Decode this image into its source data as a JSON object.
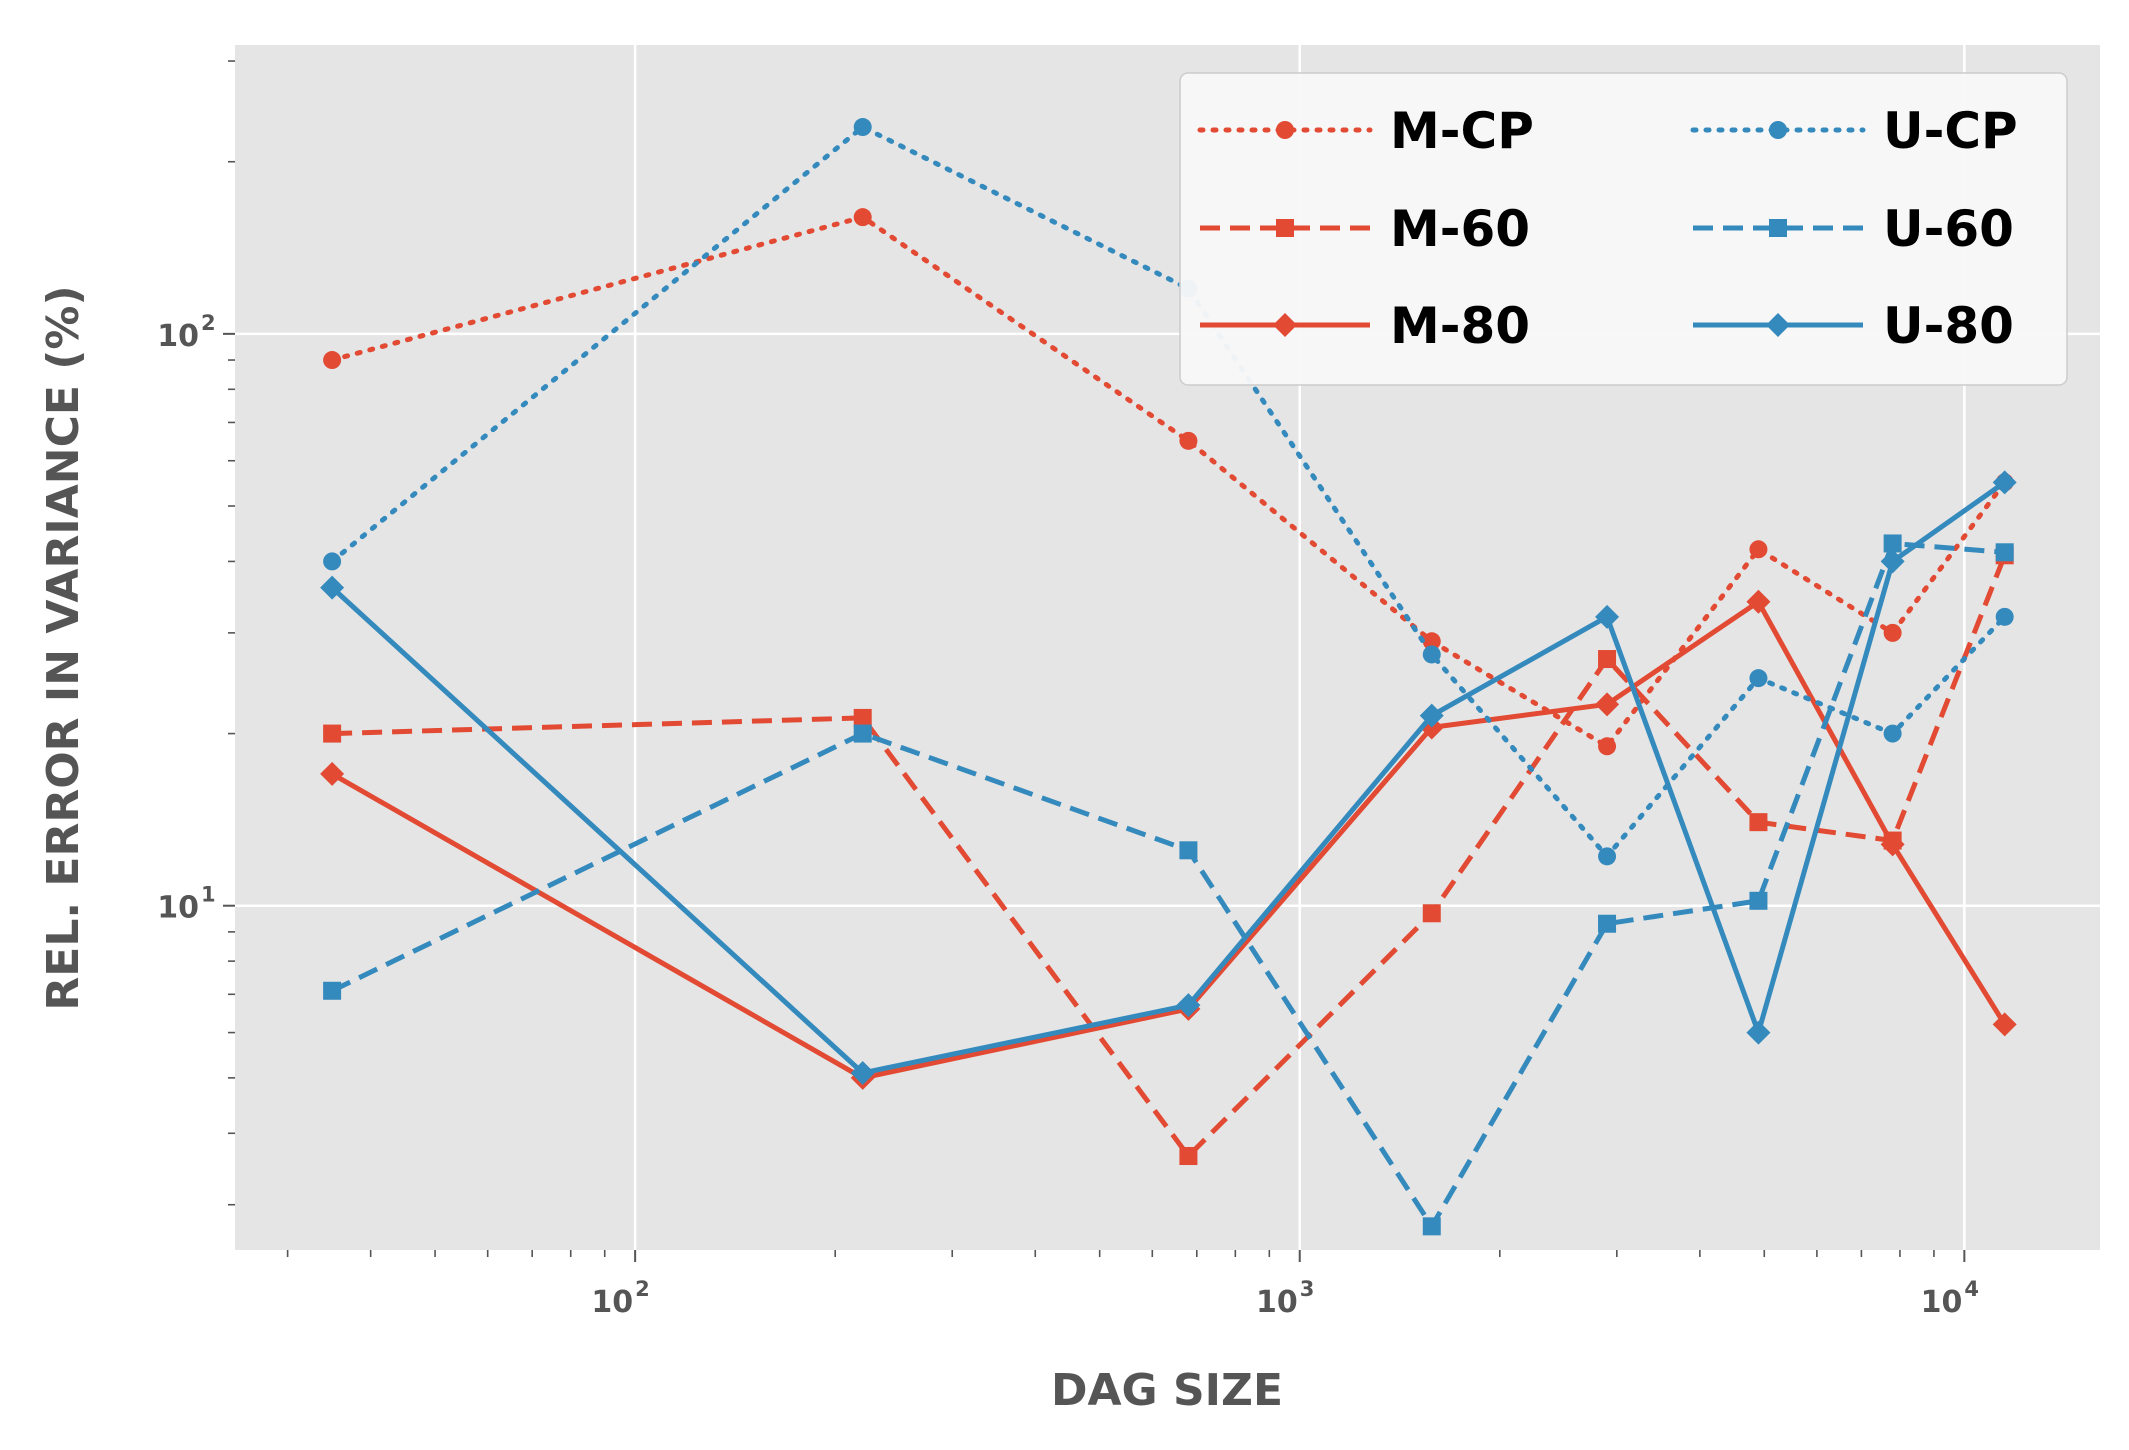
{
  "chart_data": {
    "type": "line",
    "xlabel": "DAG SIZE",
    "ylabel": "REL. ERROR IN VARIANCE (%)",
    "xscale": "log",
    "yscale": "log",
    "xlim": [
      25,
      16000
    ],
    "ylim": [
      2.5,
      320
    ],
    "grid": true,
    "legend_position": "top-right",
    "legend_columns": 2,
    "x": [
      35,
      220,
      680,
      1580,
      2900,
      4900,
      7800,
      11500
    ],
    "x_ticks": [
      {
        "base": "10",
        "exp": "2",
        "value": 100
      },
      {
        "base": "10",
        "exp": "3",
        "value": 1000
      },
      {
        "base": "10",
        "exp": "4",
        "value": 10000
      }
    ],
    "y_ticks": [
      {
        "base": "10",
        "exp": "1",
        "value": 10
      },
      {
        "base": "10",
        "exp": "2",
        "value": 100
      }
    ],
    "series": [
      {
        "name": "M-CP",
        "color": "#E24A33",
        "linestyle": "dotted",
        "marker": "circle",
        "values": [
          90,
          160,
          65,
          29,
          19,
          42,
          30,
          55
        ]
      },
      {
        "name": "M-60",
        "color": "#E24A33",
        "linestyle": "dashed",
        "marker": "square",
        "values": [
          20,
          21.3,
          3.65,
          9.7,
          27,
          14,
          13,
          41
        ]
      },
      {
        "name": "M-80",
        "color": "#E24A33",
        "linestyle": "solid",
        "marker": "diamond",
        "values": [
          17,
          5,
          6.6,
          20.5,
          22.5,
          34,
          12.8,
          6.2
        ]
      },
      {
        "name": "U-CP",
        "color": "#348ABD",
        "linestyle": "dotted",
        "marker": "circle",
        "values": [
          40,
          230,
          120,
          27.5,
          12.2,
          25,
          20,
          32
        ]
      },
      {
        "name": "U-60",
        "color": "#348ABD",
        "linestyle": "dashed",
        "marker": "square",
        "values": [
          7.1,
          20,
          12.5,
          2.75,
          9.3,
          10.2,
          43,
          41.5
        ]
      },
      {
        "name": "U-80",
        "color": "#348ABD",
        "linestyle": "solid",
        "marker": "diamond",
        "values": [
          36,
          5.1,
          6.7,
          21.5,
          32,
          6,
          40,
          55
        ]
      }
    ]
  }
}
